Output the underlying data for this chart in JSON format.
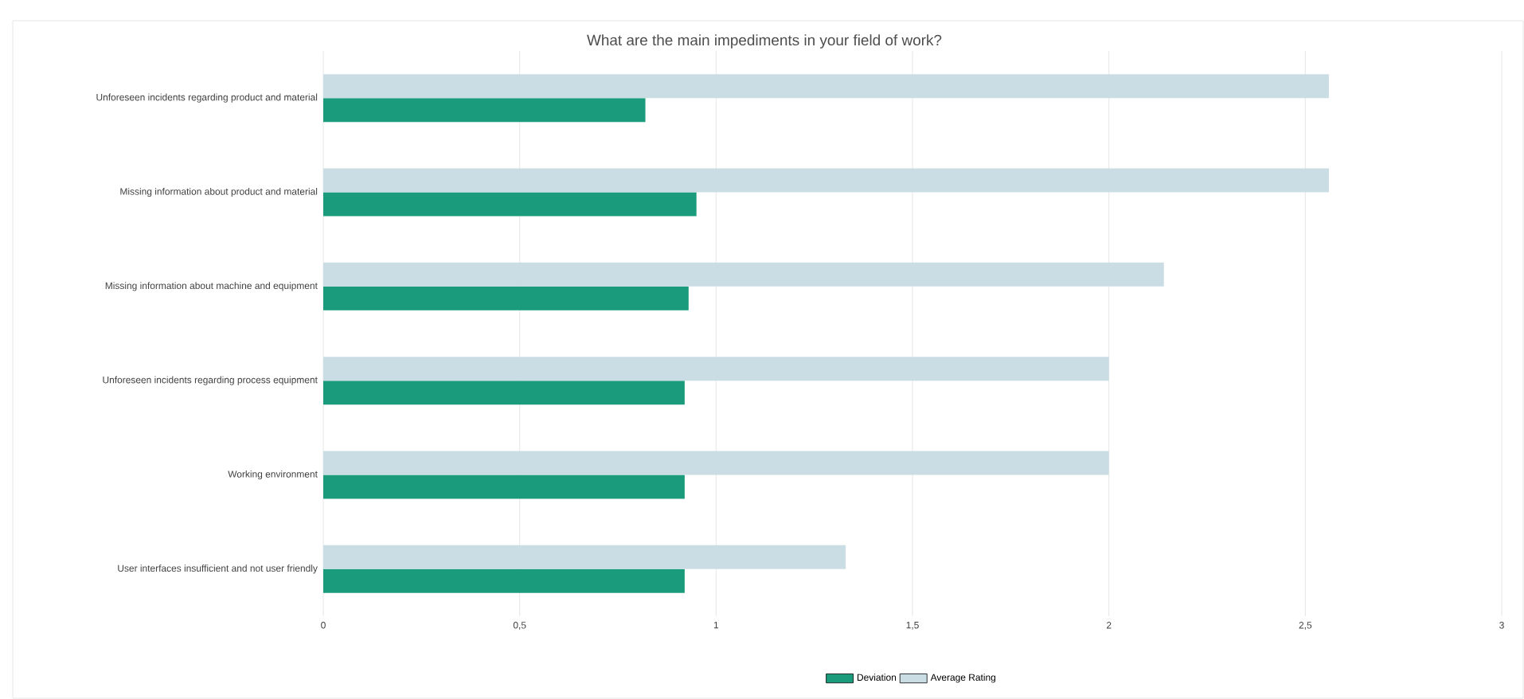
{
  "chart_data": {
    "type": "bar",
    "orientation": "horizontal",
    "title": "What are the main impediments in your field of work?",
    "categories": [
      "Unforeseen incidents regarding product and material",
      "Missing information about product and material",
      "Missing information about machine and equipment",
      "Unforeseen incidents regarding process equipment",
      "Working environment",
      "User interfaces insufficient and not user friendly"
    ],
    "series": [
      {
        "name": "Deviation",
        "color": "#1a9b7b",
        "values": [
          0.82,
          0.95,
          0.93,
          0.92,
          0.92,
          0.92
        ]
      },
      {
        "name": "Average Rating",
        "color": "#cbdde4",
        "values": [
          2.56,
          2.56,
          2.14,
          2.0,
          2.0,
          1.33
        ]
      }
    ],
    "xlim": [
      0,
      3
    ],
    "xticks": [
      0,
      {
        "value": 0.5,
        "label": "0,5"
      },
      1,
      {
        "value": 1.5,
        "label": "1,5"
      },
      2,
      {
        "value": 2.5,
        "label": "2,5"
      },
      3
    ],
    "grid": "x",
    "legend": "bottom"
  }
}
